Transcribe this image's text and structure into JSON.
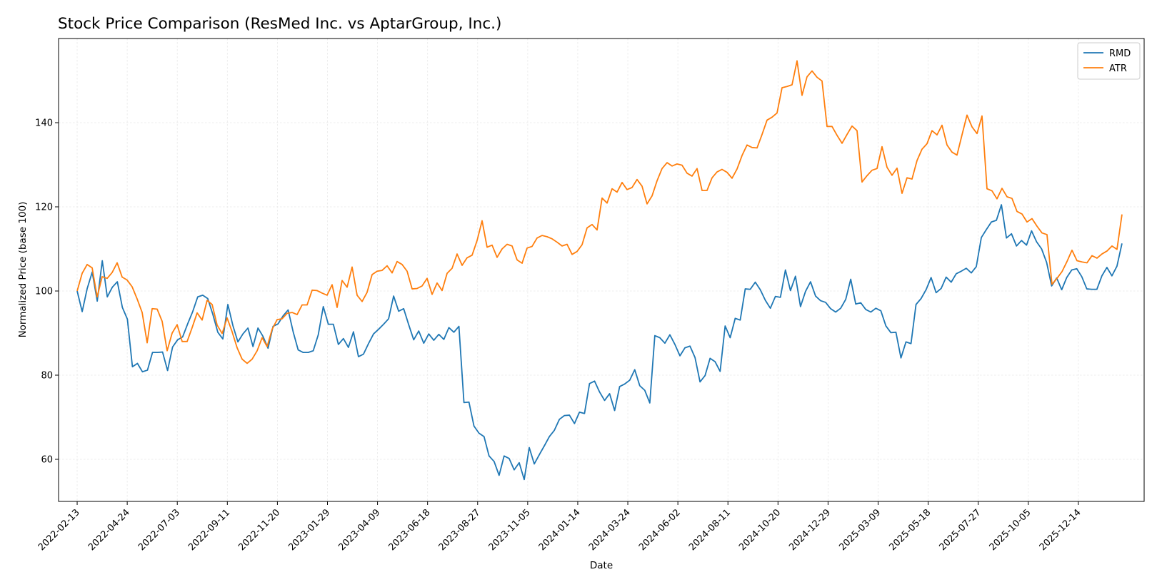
{
  "chart_data": {
    "type": "line",
    "title": "Stock Price Comparison (ResMed Inc. vs AptarGroup, Inc.)",
    "xlabel": "Date",
    "ylabel": "Normalized Price (base 100)",
    "x_start": "2022-02-13",
    "x_end": "2026-02-13",
    "xlim": [
      "2022-01-18",
      "2026-03-16"
    ],
    "ylim": [
      50,
      160
    ],
    "x_ticks": [
      "2022-02-13",
      "2022-04-24",
      "2022-07-03",
      "2022-09-11",
      "2022-11-20",
      "2023-01-29",
      "2023-04-09",
      "2023-06-18",
      "2023-08-27",
      "2023-11-05",
      "2024-01-14",
      "2024-03-24",
      "2024-06-02",
      "2024-08-11",
      "2024-10-20",
      "2024-12-29",
      "2025-03-09",
      "2025-05-18",
      "2025-07-27",
      "2025-10-05",
      "2025-12-14"
    ],
    "y_ticks": [
      60,
      80,
      100,
      120,
      140
    ],
    "grid": true,
    "legend_position": "top-right",
    "series": [
      {
        "name": "RMD",
        "color": "#1f77b4",
        "values": [
          100,
          95.1,
          100.6,
          104.5,
          97.6,
          107.2,
          98.6,
          100.9,
          102.2,
          96.1,
          93.3,
          82,
          82.8,
          80.8,
          81.2,
          85.4,
          85.4,
          85.5,
          81.1,
          86.7,
          88.4,
          89.1,
          92.2,
          95.1,
          98.6,
          99,
          98.2,
          94.5,
          90.2,
          88.6,
          96.8,
          91.8,
          87.9,
          89.8,
          91.2,
          86.8,
          91.2,
          89.2,
          86.4,
          91.6,
          92.2,
          94.1,
          95.5,
          90.3,
          86,
          85.4,
          85.4,
          85.8,
          89.6,
          96.3,
          92.1,
          92.1,
          87.3,
          88.7,
          86.6,
          90.3,
          84.4,
          85,
          87.5,
          89.8,
          90.9,
          92.1,
          93.4,
          98.8,
          95.2,
          95.8,
          92,
          88.4,
          90.5,
          87.6,
          89.8,
          88.3,
          89.7,
          88.5,
          91.3,
          90.2,
          91.6,
          73.5,
          73.6,
          67.9,
          66.2,
          65.4,
          60.8,
          59.5,
          56.2,
          60.8,
          60.2,
          57.5,
          59.2,
          55.2,
          62.8,
          58.9,
          61.1,
          63.2,
          65.4,
          66.9,
          69.5,
          70.4,
          70.5,
          68.5,
          71.2,
          70.9,
          78,
          78.6,
          76,
          74,
          75.6,
          71.6,
          77.3,
          77.9,
          78.8,
          81.3,
          77.5,
          76.4,
          73.4,
          89.4,
          88.9,
          87.6,
          89.6,
          87.3,
          84.6,
          86.5,
          86.9,
          84.2,
          78.4,
          79.9,
          84,
          83.2,
          80.9,
          91.7,
          88.9,
          93.5,
          93.1,
          100.5,
          100.4,
          102.1,
          100.3,
          97.8,
          95.9,
          98.7,
          98.5,
          105,
          100.1,
          103.5,
          96.3,
          99.9,
          102.2,
          98.8,
          97.7,
          97.3,
          95.8,
          95,
          95.9,
          98,
          102.8,
          96.9,
          97.2,
          95.6,
          95,
          95.9,
          95.3,
          91.7,
          90.1,
          90.2,
          84.1,
          87.9,
          87.5,
          96.8,
          98.2,
          100.3,
          103.2,
          99.6,
          100.6,
          103.3,
          102.1,
          104.1,
          104.7,
          105.4,
          104.3,
          105.8,
          112.7,
          114.6,
          116.4,
          116.8,
          120.5,
          112.6,
          113.6,
          110.7,
          112,
          110.9,
          114.3,
          111.7,
          110,
          106.8,
          101.2,
          103.1,
          100.3,
          103.2,
          105,
          105.3,
          103.4,
          100.5,
          100.4,
          100.4,
          103.6,
          105.6,
          103.6,
          105.9,
          111.3
        ]
      },
      {
        "name": "ATR",
        "color": "#ff7f0e",
        "values": [
          100,
          104.2,
          106.3,
          105.5,
          98.6,
          103.4,
          103,
          104.4,
          106.7,
          103.3,
          102.6,
          101,
          98.1,
          94.9,
          87.7,
          95.8,
          95.7,
          92.8,
          85.8,
          90,
          92,
          88,
          88,
          91.3,
          94.8,
          93.1,
          97.8,
          96.8,
          91.9,
          89.9,
          93.6,
          90.3,
          86.5,
          83.8,
          82.8,
          83.8,
          85.8,
          88.9,
          86.8,
          90.9,
          93.2,
          93.4,
          94.7,
          94.9,
          94.4,
          96.7,
          96.7,
          100.2,
          100.1,
          99.5,
          99,
          101.5,
          96.1,
          102.5,
          100.9,
          105.7,
          99,
          97.5,
          99.7,
          103.9,
          104.7,
          104.9,
          106,
          104.3,
          107,
          106.3,
          104.7,
          100.5,
          100.6,
          101.2,
          103,
          99.2,
          101.9,
          100.1,
          104.2,
          105.4,
          108.8,
          106.1,
          107.9,
          108.5,
          112,
          116.7,
          110.4,
          110.9,
          108,
          110,
          111.1,
          110.7,
          107.4,
          106.6,
          110.2,
          110.6,
          112.6,
          113.2,
          112.9,
          112.4,
          111.6,
          110.7,
          111.1,
          108.7,
          109.4,
          111,
          115,
          115.8,
          114.5,
          122.1,
          120.9,
          124.3,
          123.5,
          125.8,
          124.1,
          124.6,
          126.5,
          124.9,
          120.7,
          122.6,
          126.2,
          129.1,
          130.5,
          129.7,
          130.2,
          129.9,
          128,
          127.3,
          129.1,
          123.9,
          123.9,
          126.9,
          128.3,
          128.9,
          128.2,
          126.8,
          129,
          132.2,
          134.7,
          134.1,
          134,
          137.2,
          140.6,
          141.3,
          142.3,
          148.3,
          148.6,
          149,
          154.7,
          146.5,
          150.9,
          152.3,
          150.8,
          149.9,
          139.1,
          139.1,
          137,
          135.1,
          137.2,
          139.2,
          138.1,
          125.9,
          127.4,
          128.7,
          129.1,
          134.3,
          129.4,
          127.5,
          129.2,
          123.2,
          126.9,
          126.6,
          131,
          133.7,
          135,
          138.1,
          137.1,
          139.4,
          134.7,
          133,
          132.3,
          137.1,
          141.8,
          139,
          137.4,
          141.6,
          124.3,
          123.8,
          121.9,
          124.4,
          122.4,
          122,
          118.9,
          118.3,
          116.4,
          117.2,
          115.4,
          113.8,
          113.4,
          101.6,
          103,
          104.6,
          107,
          109.7,
          107.2,
          106.9,
          106.7,
          108.4,
          107.8,
          108.8,
          109.5,
          110.7,
          109.9,
          118.2
        ]
      }
    ]
  }
}
